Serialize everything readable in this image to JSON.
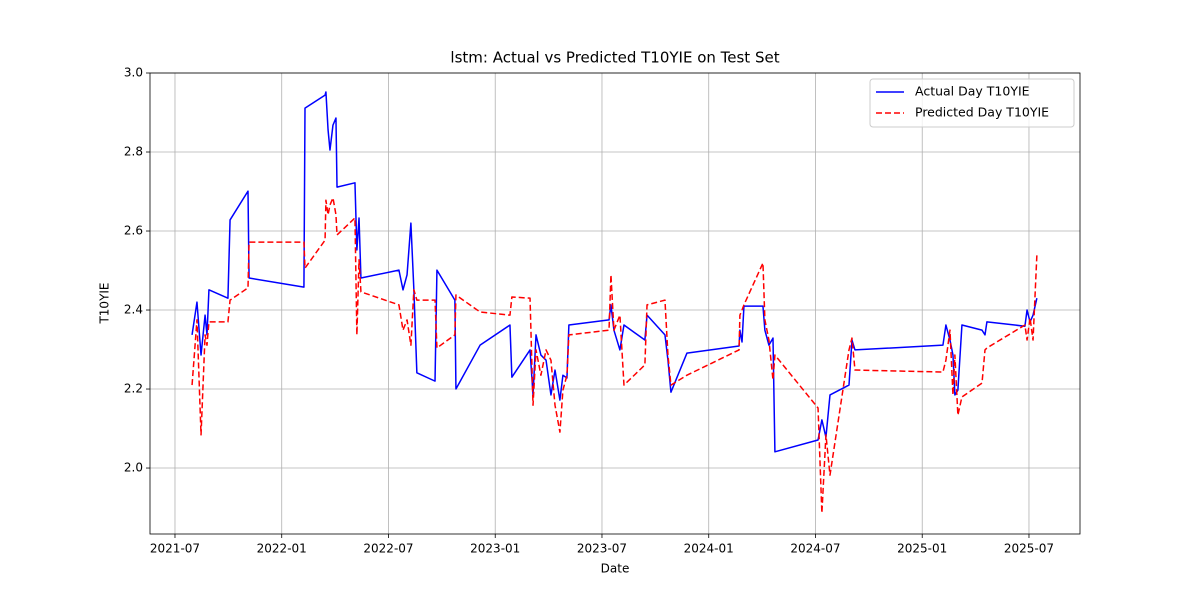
{
  "chart_data": {
    "type": "line",
    "title": "lstm: Actual vs Predicted T10YIE on Test Set",
    "x_label": "Date",
    "y_label": "T10YIE",
    "grid": true,
    "legend_position": "upper-right",
    "xlim": [
      2021.383,
      2025.739
    ],
    "ylim": [
      1.833,
      3.0
    ],
    "xticks": [
      {
        "value": 2021.5,
        "label": "2021-07"
      },
      {
        "value": 2022.0,
        "label": "2022-01"
      },
      {
        "value": 2022.5,
        "label": "2022-07"
      },
      {
        "value": 2023.0,
        "label": "2023-01"
      },
      {
        "value": 2023.5,
        "label": "2023-07"
      },
      {
        "value": 2024.0,
        "label": "2024-01"
      },
      {
        "value": 2024.5,
        "label": "2024-07"
      },
      {
        "value": 2025.0,
        "label": "2025-01"
      },
      {
        "value": 2025.5,
        "label": "2025-07"
      }
    ],
    "yticks": [
      {
        "value": 2,
        "label": "2.0"
      },
      2.2,
      2.4,
      2.6,
      2.8,
      {
        "value": 3,
        "label": "3.0"
      }
    ],
    "x": [
      2021.58,
      2021.603,
      2021.622,
      2021.641,
      2021.65,
      2021.659,
      2021.748,
      2021.758,
      2021.842,
      2021.847,
      2022.104,
      2022.109,
      2022.203,
      2022.207,
      2022.217,
      2022.226,
      2022.24,
      2022.254,
      2022.259,
      2022.343,
      2022.352,
      2022.362,
      2022.371,
      2022.549,
      2022.568,
      2022.587,
      2022.605,
      2022.619,
      2022.633,
      2022.718,
      2022.727,
      2022.811,
      2022.816,
      2022.929,
      2023.069,
      2023.078,
      2023.163,
      2023.177,
      2023.191,
      2023.214,
      2023.238,
      2023.261,
      2023.28,
      2023.303,
      2023.317,
      2023.336,
      2023.345,
      2023.533,
      2023.542,
      2023.556,
      2023.584,
      2023.603,
      2023.701,
      2023.711,
      2023.795,
      2023.809,
      2023.823,
      2023.898,
      2024.142,
      2024.146,
      2024.156,
      2024.165,
      2024.254,
      2024.263,
      2024.282,
      2024.301,
      2024.31,
      2024.512,
      2024.53,
      2024.549,
      2024.568,
      2024.657,
      2024.671,
      2024.685,
      2025.097,
      2025.111,
      2025.13,
      2025.144,
      2025.153,
      2025.167,
      2025.186,
      2025.28,
      2025.294,
      2025.303,
      2025.481,
      2025.491,
      2025.505,
      2025.519,
      2025.537
    ],
    "series": [
      {
        "name": "Actual Day T10YIE",
        "color": "#0000ff",
        "linestyle": "solid",
        "values": [
          2.337,
          2.42,
          2.286,
          2.387,
          2.337,
          2.451,
          2.43,
          2.628,
          2.701,
          2.481,
          2.458,
          2.911,
          2.944,
          2.952,
          2.856,
          2.805,
          2.868,
          2.886,
          2.711,
          2.722,
          2.552,
          2.633,
          2.481,
          2.501,
          2.451,
          2.489,
          2.62,
          2.451,
          2.241,
          2.22,
          2.501,
          2.425,
          2.2,
          2.311,
          2.362,
          2.23,
          2.299,
          2.185,
          2.337,
          2.286,
          2.273,
          2.185,
          2.248,
          2.172,
          2.235,
          2.228,
          2.362,
          2.375,
          2.413,
          2.349,
          2.299,
          2.362,
          2.324,
          2.387,
          2.337,
          2.273,
          2.192,
          2.291,
          2.309,
          2.349,
          2.319,
          2.41,
          2.41,
          2.349,
          2.311,
          2.329,
          2.041,
          2.071,
          2.122,
          2.078,
          2.185,
          2.21,
          2.324,
          2.299,
          2.311,
          2.362,
          2.324,
          2.286,
          2.185,
          2.197,
          2.362,
          2.349,
          2.337,
          2.37,
          2.359,
          2.4,
          2.37,
          2.387,
          2.43
        ]
      },
      {
        "name": "Predicted Day T10YIE",
        "color": "#ff0000",
        "linestyle": "dashed",
        "values": [
          2.21,
          2.375,
          2.084,
          2.337,
          2.311,
          2.37,
          2.37,
          2.425,
          2.456,
          2.572,
          2.572,
          2.506,
          2.577,
          2.678,
          2.641,
          2.666,
          2.684,
          2.641,
          2.59,
          2.633,
          2.337,
          2.527,
          2.446,
          2.413,
          2.349,
          2.375,
          2.311,
          2.451,
          2.425,
          2.425,
          2.304,
          2.337,
          2.438,
          2.395,
          2.387,
          2.433,
          2.43,
          2.159,
          2.299,
          2.235,
          2.299,
          2.273,
          2.159,
          2.091,
          2.197,
          2.235,
          2.337,
          2.349,
          2.489,
          2.349,
          2.387,
          2.21,
          2.261,
          2.413,
          2.425,
          2.286,
          2.21,
          2.235,
          2.299,
          2.387,
          2.4,
          2.413,
          2.519,
          2.375,
          2.324,
          2.223,
          2.286,
          2.152,
          1.886,
          2.084,
          1.982,
          2.299,
          2.329,
          2.248,
          2.243,
          2.273,
          2.349,
          2.185,
          2.286,
          2.134,
          2.18,
          2.215,
          2.299,
          2.304,
          2.362,
          2.324,
          2.38,
          2.324,
          2.539
        ]
      }
    ]
  }
}
